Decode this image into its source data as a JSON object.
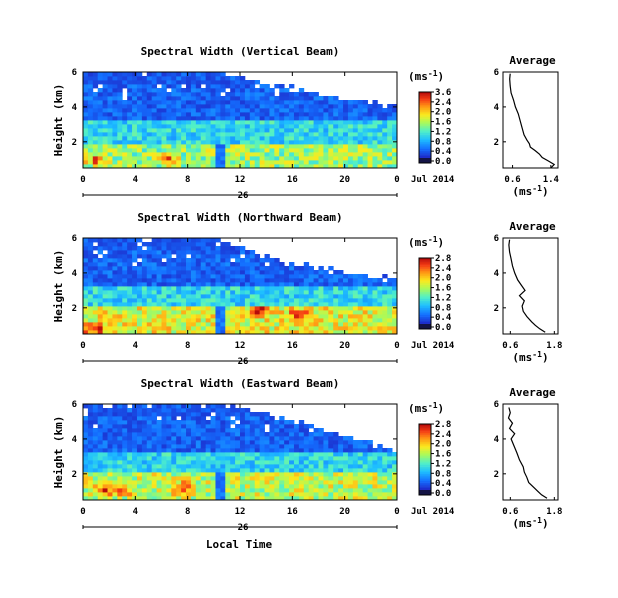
{
  "chart_data": [
    {
      "type": "heatmap",
      "title": "Spectral Width (Vertical Beam)",
      "ylabel": "Height (km)",
      "xlim": [
        0,
        24
      ],
      "ylim": [
        0.5,
        6
      ],
      "x_ticks": [
        "0",
        "4",
        "8",
        "12",
        "16",
        "20",
        "0"
      ],
      "y_ticks": [
        "6",
        "4",
        "2"
      ],
      "date_labels": [
        "26",
        "Jul 2014"
      ],
      "colorbar": {
        "unit_label": "(ms",
        "unit_exp": "-1",
        "unit_close": ")",
        "ticks": [
          "3.6",
          "2.4",
          "2.0",
          "1.6",
          "1.2",
          "0.8",
          "0.4",
          "0.0"
        ]
      },
      "pattern": {
        "low_band_top_km": 1.9,
        "low_level": 0.55,
        "hot_spots": [
          [
            1.0,
            1.0
          ],
          [
            6.5,
            1.0
          ]
        ],
        "dry_gap_start_h": 10.3,
        "dry_gap_end_h": 10.8,
        "cloud_edge": [
          [
            9,
            6.2
          ],
          [
            18,
            4.7
          ],
          [
            24,
            4.1
          ]
        ]
      },
      "profile": {
        "title": "Average",
        "xlabel": "(ms",
        "xlabel_exp": "-1",
        "xlabel_close": ")",
        "xlim": [
          0.4,
          1.55
        ],
        "x_ticks": [
          "0.6",
          "1.4"
        ],
        "y_ticks": [
          "6",
          "4",
          "2"
        ],
        "heights": [
          0.5,
          0.7,
          0.9,
          1.1,
          1.3,
          1.5,
          1.7,
          1.9,
          2.1,
          2.4,
          2.8,
          3.2,
          3.6,
          4.0,
          4.4,
          4.8,
          5.2,
          5.6,
          5.9
        ],
        "values": [
          1.4,
          1.47,
          1.35,
          1.22,
          1.16,
          1.07,
          0.97,
          0.95,
          0.9,
          0.84,
          0.8,
          0.76,
          0.72,
          0.66,
          0.62,
          0.57,
          0.55,
          0.54,
          0.55
        ]
      }
    },
    {
      "type": "heatmap",
      "title": "Spectral Width (Northward Beam)",
      "ylabel": "Height (km)",
      "xlim": [
        0,
        24
      ],
      "ylim": [
        0.5,
        6
      ],
      "x_ticks": [
        "0",
        "4",
        "8",
        "12",
        "16",
        "20",
        "0"
      ],
      "y_ticks": [
        "6",
        "4",
        "2"
      ],
      "date_labels": [
        "26",
        "Jul 2014"
      ],
      "colorbar": {
        "unit_label": "(ms",
        "unit_exp": "-1",
        "unit_close": ")",
        "ticks": [
          "2.8",
          "2.4",
          "2.0",
          "1.6",
          "1.2",
          "0.8",
          "0.4",
          "0.0"
        ]
      },
      "pattern": {
        "low_band_top_km": 2.1,
        "low_level": 0.65,
        "hot_spots": [
          [
            0.8,
            0.8
          ],
          [
            13.5,
            1.8
          ],
          [
            16.5,
            1.6
          ]
        ],
        "dry_gap_start_h": 10.3,
        "dry_gap_end_h": 10.8,
        "cloud_edge": [
          [
            9,
            6.2
          ],
          [
            16,
            4.5
          ],
          [
            24,
            3.6
          ]
        ]
      },
      "profile": {
        "title": "Average",
        "xlabel": "(ms",
        "xlabel_exp": "-1",
        "xlabel_close": ")",
        "xlim": [
          0.4,
          1.9
        ],
        "x_ticks": [
          "0.6",
          "1.8"
        ],
        "y_ticks": [
          "6",
          "4",
          "2"
        ],
        "heights": [
          0.6,
          0.8,
          1.0,
          1.2,
          1.5,
          1.8,
          2.1,
          2.4,
          2.7,
          3.0,
          3.3,
          3.6,
          4.0,
          4.4,
          4.8,
          5.2,
          5.6,
          5.9
        ],
        "values": [
          1.55,
          1.4,
          1.28,
          1.18,
          1.05,
          0.95,
          0.92,
          0.98,
          0.85,
          1.0,
          0.9,
          0.8,
          0.72,
          0.66,
          0.62,
          0.58,
          0.56,
          0.58
        ]
      }
    },
    {
      "type": "heatmap",
      "title": "Spectral Width (Eastward Beam)",
      "ylabel": "Height (km)",
      "xlabel": "Local Time",
      "xlim": [
        0,
        24
      ],
      "ylim": [
        0.5,
        6
      ],
      "x_ticks": [
        "0",
        "4",
        "8",
        "12",
        "16",
        "20",
        "0"
      ],
      "y_ticks": [
        "6",
        "4",
        "2"
      ],
      "date_labels": [
        "26",
        "Jul 2014"
      ],
      "colorbar": {
        "unit_label": "(ms",
        "unit_exp": "-1",
        "unit_close": ")",
        "ticks": [
          "2.8",
          "2.4",
          "2.0",
          "1.6",
          "1.2",
          "0.8",
          "0.4",
          "0.0"
        ]
      },
      "pattern": {
        "low_band_top_km": 2.0,
        "low_level": 0.6,
        "hot_spots": [
          [
            1.5,
            1.1
          ],
          [
            3.0,
            1.1
          ],
          [
            7.5,
            1.2
          ]
        ],
        "dry_gap_start_h": 10.3,
        "dry_gap_end_h": 10.8,
        "cloud_edge": [
          [
            10,
            6.2
          ],
          [
            16,
            5.0
          ],
          [
            24,
            3.3
          ]
        ]
      },
      "profile": {
        "title": "Average",
        "xlabel": "(ms",
        "xlabel_exp": "-1",
        "xlabel_close": ")",
        "xlim": [
          0.4,
          1.9
        ],
        "x_ticks": [
          "0.6",
          "1.8"
        ],
        "y_ticks": [
          "6",
          "4",
          "2"
        ],
        "heights": [
          0.6,
          0.8,
          1.0,
          1.2,
          1.5,
          1.8,
          2.1,
          2.4,
          2.8,
          3.2,
          3.6,
          4.0,
          4.3,
          4.6,
          4.9,
          5.2,
          5.5,
          5.8
        ],
        "values": [
          1.6,
          1.45,
          1.35,
          1.25,
          1.1,
          1.05,
          0.98,
          0.95,
          0.85,
          0.78,
          0.7,
          0.62,
          0.72,
          0.58,
          0.66,
          0.55,
          0.6,
          0.56
        ]
      }
    }
  ]
}
